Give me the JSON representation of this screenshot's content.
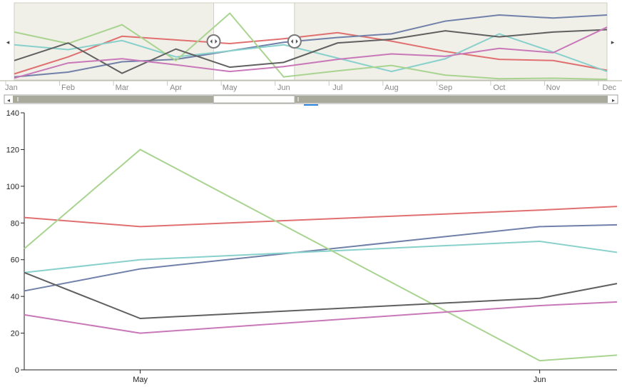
{
  "colors": {
    "red": "#e07070",
    "navy": "#7080a8",
    "teal": "#88d0cc",
    "green": "#a8d490",
    "gray": "#606060",
    "pink": "#c878b8",
    "shade": "#f0efe8",
    "scrollbar": "#a9a99c",
    "accent": "#2e86de"
  },
  "icons": {
    "nav_left": "arrow-left-icon",
    "nav_right": "arrow-right-icon",
    "handle": "drag-handle-icon"
  },
  "navigator": {
    "months": [
      "Jan",
      "Feb",
      "Mar",
      "Apr",
      "May",
      "Jun",
      "Jul",
      "Aug",
      "Sep",
      "Oct",
      "Nov",
      "Dec"
    ],
    "selection": {
      "start": "Apr",
      "end": "Jun"
    },
    "left_arrow": "◂",
    "right_arrow": "▸"
  },
  "chart_data": {
    "type": "line",
    "title": "",
    "xlabel": "",
    "ylabel": "",
    "ylim": [
      0,
      140
    ],
    "yticks": [
      0,
      20,
      40,
      60,
      80,
      100,
      120,
      140
    ],
    "x_tick_labels": [
      "May",
      "Jun"
    ],
    "grid": false,
    "legend": "none",
    "overview": {
      "categories": [
        "Jan",
        "Feb",
        "Mar",
        "Apr",
        "May",
        "Jun",
        "Jul",
        "Aug",
        "Sep",
        "Oct",
        "Nov",
        "Dec"
      ],
      "series": [
        {
          "color": "red",
          "values": [
            10,
            38,
            72,
            66,
            60,
            68,
            78,
            64,
            47,
            34,
            32,
            16
          ]
        },
        {
          "color": "navy",
          "values": [
            5,
            13,
            30,
            34,
            48,
            62,
            70,
            76,
            97,
            107,
            102,
            107
          ]
        },
        {
          "color": "teal",
          "values": [
            58,
            50,
            65,
            38,
            48,
            58,
            36,
            14,
            35,
            76,
            46,
            14
          ]
        },
        {
          "color": "green",
          "values": [
            79,
            60,
            91,
            32,
            110,
            5,
            15,
            24,
            8,
            2,
            3,
            1
          ]
        },
        {
          "color": "gray",
          "values": [
            32,
            61,
            11,
            51,
            21,
            29,
            61,
            67,
            81,
            71,
            79,
            83
          ]
        },
        {
          "color": "pink",
          "values": [
            3,
            28,
            35,
            25,
            14,
            22,
            34,
            43,
            39,
            52,
            45,
            87
          ]
        }
      ]
    },
    "detail": {
      "x_range": [
        "Apr 22",
        "Jun 7"
      ],
      "series": [
        {
          "color": "red",
          "points": [
            [
              "Apr 22",
              83
            ],
            [
              "May 1",
              78
            ],
            [
              "Jun 1",
              87
            ],
            [
              "Jun 7",
              89
            ]
          ]
        },
        {
          "color": "navy",
          "points": [
            [
              "Apr 22",
              43
            ],
            [
              "May 1",
              55
            ],
            [
              "Jun 1",
              78
            ],
            [
              "Jun 7",
              79
            ]
          ]
        },
        {
          "color": "teal",
          "points": [
            [
              "Apr 22",
              53
            ],
            [
              "May 1",
              60
            ],
            [
              "Jun 1",
              70
            ],
            [
              "Jun 7",
              64
            ]
          ]
        },
        {
          "color": "green",
          "points": [
            [
              "Apr 22",
              66
            ],
            [
              "May 1",
              120
            ],
            [
              "Jun 1",
              5
            ],
            [
              "Jun 7",
              8
            ]
          ]
        },
        {
          "color": "gray",
          "points": [
            [
              "Apr 22",
              53
            ],
            [
              "May 1",
              28
            ],
            [
              "Jun 1",
              39
            ],
            [
              "Jun 7",
              47
            ]
          ]
        },
        {
          "color": "pink",
          "points": [
            [
              "Apr 22",
              30
            ],
            [
              "May 1",
              20
            ],
            [
              "Jun 1",
              35
            ],
            [
              "Jun 7",
              37
            ]
          ]
        }
      ]
    }
  }
}
